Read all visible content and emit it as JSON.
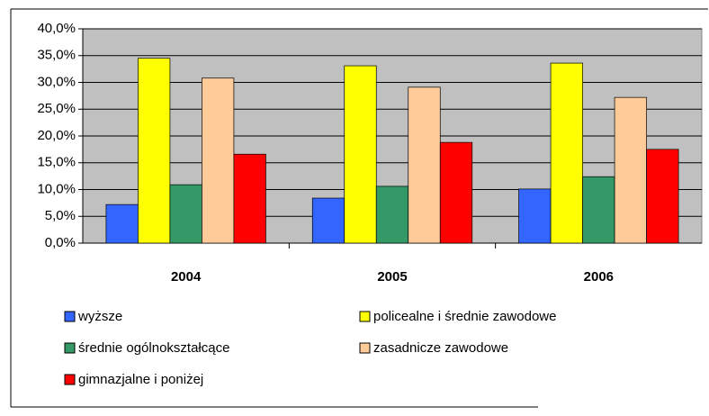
{
  "chart_data": {
    "type": "bar",
    "categories": [
      "2004",
      "2005",
      "2006"
    ],
    "series": [
      {
        "name": "wyższe",
        "color": "#3366ff",
        "values": [
          7.2,
          8.4,
          10.1
        ]
      },
      {
        "name": "policealne i średnie zawodowe",
        "color": "#ffff00",
        "values": [
          34.5,
          33.1,
          33.6
        ]
      },
      {
        "name": "średnie ogólnokształcące",
        "color": "#339966",
        "values": [
          10.9,
          10.6,
          12.4
        ]
      },
      {
        "name": "zasadnicze zawodowe",
        "color": "#ffcc99",
        "values": [
          30.8,
          29.1,
          27.2
        ]
      },
      {
        "name": "gimnazjalne i poniżej",
        "color": "#ff0000",
        "values": [
          16.6,
          18.8,
          17.5
        ]
      }
    ],
    "ylim": [
      0,
      40
    ],
    "yticks": [
      {
        "value": 0,
        "label": "0,0%"
      },
      {
        "value": 5,
        "label": "5,0%"
      },
      {
        "value": 10,
        "label": "10,0%"
      },
      {
        "value": 15,
        "label": "15,0%"
      },
      {
        "value": 20,
        "label": "20,0%"
      },
      {
        "value": 25,
        "label": "25,0%"
      },
      {
        "value": 30,
        "label": "30,0%"
      },
      {
        "value": 35,
        "label": "35,0%"
      },
      {
        "value": 40,
        "label": "40,0%"
      }
    ],
    "grid": true,
    "legend": "bottom"
  }
}
